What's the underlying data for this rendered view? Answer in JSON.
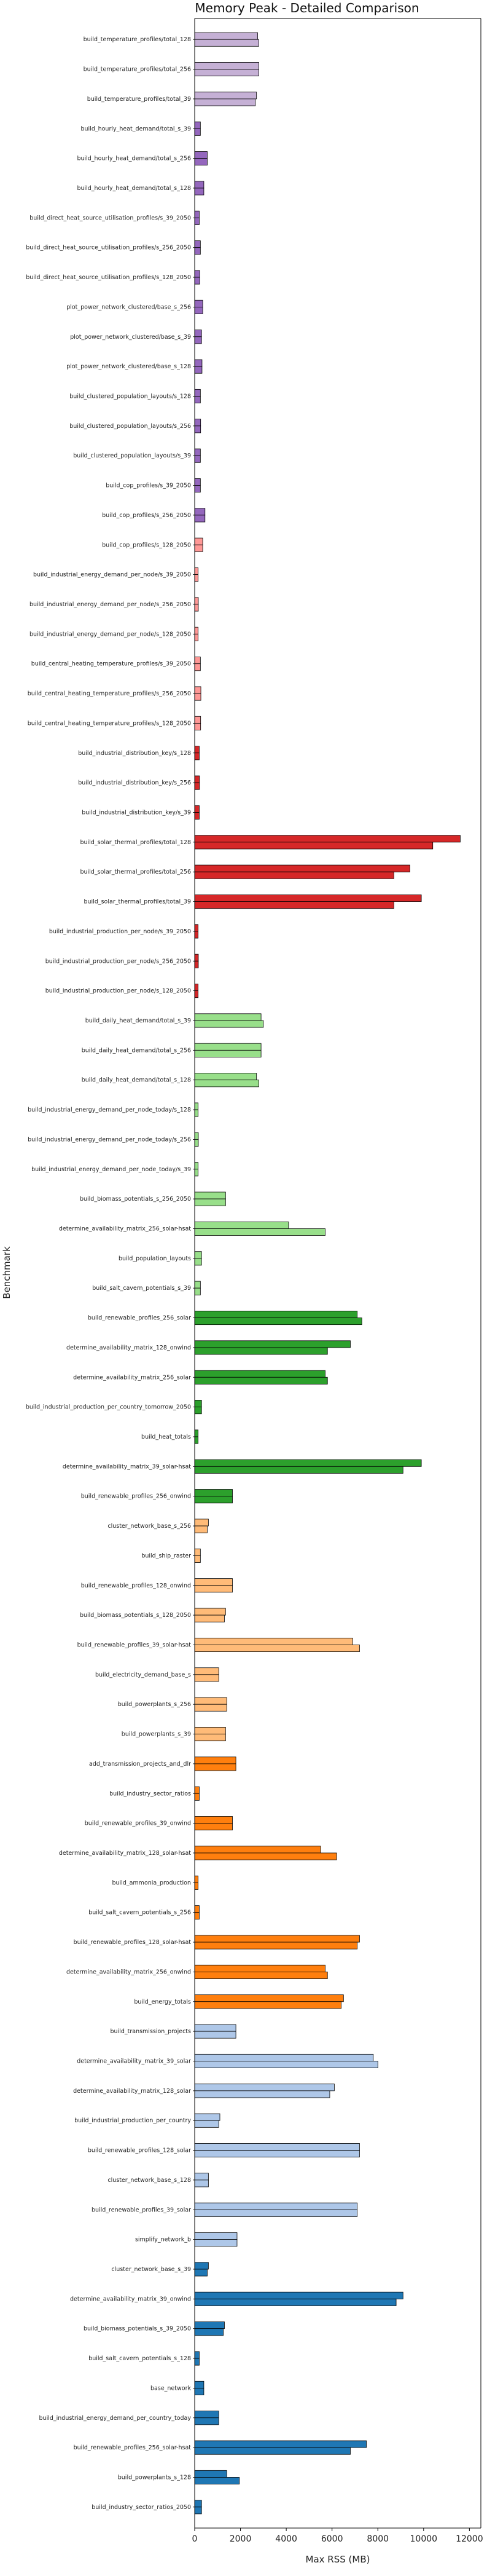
{
  "chart_data": {
    "type": "bar",
    "orientation": "horizontal",
    "title": "Memory Peak - Detailed Comparison",
    "xlabel": "Max RSS (MB)",
    "ylabel": "Benchmark",
    "xlim": [
      0,
      12500
    ],
    "xticks": [
      0,
      2000,
      4000,
      6000,
      8000,
      10000,
      12000
    ],
    "tick_format": "plain",
    "grid": false,
    "colors": {
      "purple_light": "#c5b0d5",
      "purple": "#9467bd",
      "red_light": "#ff9896",
      "red": "#d62728",
      "green_light": "#98df8a",
      "green": "#2ca02c",
      "orange_light": "#ffbb78",
      "orange": "#ff7f0e",
      "blue_light": "#aec7e8",
      "blue": "#1f77b4"
    },
    "benchmarks": [
      {
        "label": "build_temperature_profiles/total_128",
        "color": "purple_light",
        "values": [
          2750,
          2800
        ]
      },
      {
        "label": "build_temperature_profiles/total_256",
        "color": "purple_light",
        "values": [
          2800,
          2800
        ]
      },
      {
        "label": "build_temperature_profiles/total_39",
        "color": "purple_light",
        "values": [
          2700,
          2650
        ]
      },
      {
        "label": "build_hourly_heat_demand/total_s_39",
        "color": "purple",
        "values": [
          250,
          250
        ]
      },
      {
        "label": "build_hourly_heat_demand/total_s_256",
        "color": "purple",
        "values": [
          550,
          550
        ]
      },
      {
        "label": "build_hourly_heat_demand/total_s_128",
        "color": "purple",
        "values": [
          400,
          400
        ]
      },
      {
        "label": "build_direct_heat_source_utilisation_profiles/s_39_2050",
        "color": "purple",
        "values": [
          200,
          200
        ]
      },
      {
        "label": "build_direct_heat_source_utilisation_profiles/s_256_2050",
        "color": "purple",
        "values": [
          250,
          250
        ]
      },
      {
        "label": "build_direct_heat_source_utilisation_profiles/s_128_2050",
        "color": "purple",
        "values": [
          220,
          220
        ]
      },
      {
        "label": "plot_power_network_clustered/base_s_256",
        "color": "purple",
        "values": [
          350,
          350
        ]
      },
      {
        "label": "plot_power_network_clustered/base_s_39",
        "color": "purple",
        "values": [
          300,
          300
        ]
      },
      {
        "label": "plot_power_network_clustered/base_s_128",
        "color": "purple",
        "values": [
          320,
          320
        ]
      },
      {
        "label": "build_clustered_population_layouts/s_128",
        "color": "purple",
        "values": [
          250,
          250
        ]
      },
      {
        "label": "build_clustered_population_layouts/s_256",
        "color": "purple",
        "values": [
          260,
          260
        ]
      },
      {
        "label": "build_clustered_population_layouts/s_39",
        "color": "purple",
        "values": [
          250,
          250
        ]
      },
      {
        "label": "build_cop_profiles/s_39_2050",
        "color": "purple",
        "values": [
          250,
          250
        ]
      },
      {
        "label": "build_cop_profiles/s_256_2050",
        "color": "purple",
        "values": [
          450,
          450
        ]
      },
      {
        "label": "build_cop_profiles/s_128_2050",
        "color": "red_light",
        "values": [
          350,
          350
        ]
      },
      {
        "label": "build_industrial_energy_demand_per_node/s_39_2050",
        "color": "red_light",
        "values": [
          150,
          150
        ]
      },
      {
        "label": "build_industrial_energy_demand_per_node/s_256_2050",
        "color": "red_light",
        "values": [
          160,
          160
        ]
      },
      {
        "label": "build_industrial_energy_demand_per_node/s_128_2050",
        "color": "red_light",
        "values": [
          150,
          150
        ]
      },
      {
        "label": "build_central_heating_temperature_profiles/s_39_2050",
        "color": "red_light",
        "values": [
          250,
          250
        ]
      },
      {
        "label": "build_central_heating_temperature_profiles/s_256_2050",
        "color": "red_light",
        "values": [
          270,
          270
        ]
      },
      {
        "label": "build_central_heating_temperature_profiles/s_128_2050",
        "color": "red_light",
        "values": [
          260,
          260
        ]
      },
      {
        "label": "build_industrial_distribution_key/s_128",
        "color": "red",
        "values": [
          200,
          200
        ]
      },
      {
        "label": "build_industrial_distribution_key/s_256",
        "color": "red",
        "values": [
          210,
          210
        ]
      },
      {
        "label": "build_industrial_distribution_key/s_39",
        "color": "red",
        "values": [
          200,
          200
        ]
      },
      {
        "label": "build_solar_thermal_profiles/total_128",
        "color": "red",
        "values": [
          11600,
          10400
        ]
      },
      {
        "label": "build_solar_thermal_profiles/total_256",
        "color": "red",
        "values": [
          9400,
          8700
        ]
      },
      {
        "label": "build_solar_thermal_profiles/total_39",
        "color": "red",
        "values": [
          9900,
          8700
        ]
      },
      {
        "label": "build_industrial_production_per_node/s_39_2050",
        "color": "red",
        "values": [
          150,
          150
        ]
      },
      {
        "label": "build_industrial_production_per_node/s_256_2050",
        "color": "red",
        "values": [
          160,
          160
        ]
      },
      {
        "label": "build_industrial_production_per_node/s_128_2050",
        "color": "red",
        "values": [
          150,
          150
        ]
      },
      {
        "label": "build_daily_heat_demand/total_s_39",
        "color": "green_light",
        "values": [
          2900,
          3000
        ]
      },
      {
        "label": "build_daily_heat_demand/total_s_256",
        "color": "green_light",
        "values": [
          2900,
          2900
        ]
      },
      {
        "label": "build_daily_heat_demand/total_s_128",
        "color": "green_light",
        "values": [
          2700,
          2800
        ]
      },
      {
        "label": "build_industrial_energy_demand_per_node_today/s_128",
        "color": "green_light",
        "values": [
          150,
          150
        ]
      },
      {
        "label": "build_industrial_energy_demand_per_node_today/s_256",
        "color": "green_light",
        "values": [
          160,
          160
        ]
      },
      {
        "label": "build_industrial_energy_demand_per_node_today/s_39",
        "color": "green_light",
        "values": [
          150,
          150
        ]
      },
      {
        "label": "build_biomass_potentials_s_256_2050",
        "color": "green_light",
        "values": [
          1350,
          1350
        ]
      },
      {
        "label": "determine_availability_matrix_256_solar-hsat",
        "color": "green_light",
        "values": [
          4100,
          5700
        ]
      },
      {
        "label": "build_population_layouts",
        "color": "green_light",
        "values": [
          300,
          300
        ]
      },
      {
        "label": "build_salt_cavern_potentials_s_39",
        "color": "green_light",
        "values": [
          250,
          250
        ]
      },
      {
        "label": "build_renewable_profiles_256_solar",
        "color": "green",
        "values": [
          7100,
          7300
        ]
      },
      {
        "label": "determine_availability_matrix_128_onwind",
        "color": "green",
        "values": [
          6800,
          5800
        ]
      },
      {
        "label": "determine_availability_matrix_256_solar",
        "color": "green",
        "values": [
          5700,
          5800
        ]
      },
      {
        "label": "build_industrial_production_per_country_tomorrow_2050",
        "color": "green",
        "values": [
          300,
          300
        ]
      },
      {
        "label": "build_heat_totals",
        "color": "green",
        "values": [
          150,
          150
        ]
      },
      {
        "label": "determine_availability_matrix_39_solar-hsat",
        "color": "green",
        "values": [
          9900,
          9100
        ]
      },
      {
        "label": "build_renewable_profiles_256_onwind",
        "color": "green",
        "values": [
          1650,
          1650
        ]
      },
      {
        "label": "cluster_network_base_s_256",
        "color": "orange_light",
        "values": [
          600,
          550
        ]
      },
      {
        "label": "build_ship_raster",
        "color": "orange_light",
        "values": [
          250,
          250
        ]
      },
      {
        "label": "build_renewable_profiles_128_onwind",
        "color": "orange_light",
        "values": [
          1650,
          1650
        ]
      },
      {
        "label": "build_biomass_potentials_s_128_2050",
        "color": "orange_light",
        "values": [
          1350,
          1300
        ]
      },
      {
        "label": "build_renewable_profiles_39_solar-hsat",
        "color": "orange_light",
        "values": [
          6900,
          7200
        ]
      },
      {
        "label": "build_electricity_demand_base_s",
        "color": "orange_light",
        "values": [
          1050,
          1050
        ]
      },
      {
        "label": "build_powerplants_s_256",
        "color": "orange_light",
        "values": [
          1400,
          1400
        ]
      },
      {
        "label": "build_powerplants_s_39",
        "color": "orange_light",
        "values": [
          1350,
          1350
        ]
      },
      {
        "label": "add_transmission_projects_and_dlr",
        "color": "orange",
        "values": [
          1800,
          1800
        ]
      },
      {
        "label": "build_industry_sector_ratios",
        "color": "orange",
        "values": [
          200,
          200
        ]
      },
      {
        "label": "build_renewable_profiles_39_onwind",
        "color": "orange",
        "values": [
          1650,
          1650
        ]
      },
      {
        "label": "determine_availability_matrix_128_solar-hsat",
        "color": "orange",
        "values": [
          5500,
          6200
        ]
      },
      {
        "label": "build_ammonia_production",
        "color": "orange",
        "values": [
          150,
          150
        ]
      },
      {
        "label": "build_salt_cavern_potentials_s_256",
        "color": "orange",
        "values": [
          200,
          200
        ]
      },
      {
        "label": "build_renewable_profiles_128_solar-hsat",
        "color": "orange",
        "values": [
          7200,
          7100
        ]
      },
      {
        "label": "determine_availability_matrix_256_onwind",
        "color": "orange",
        "values": [
          5700,
          5800
        ]
      },
      {
        "label": "build_energy_totals",
        "color": "orange",
        "values": [
          6500,
          6400
        ]
      },
      {
        "label": "build_transmission_projects",
        "color": "blue_light",
        "values": [
          1800,
          1800
        ]
      },
      {
        "label": "determine_availability_matrix_39_solar",
        "color": "blue_light",
        "values": [
          7800,
          8000
        ]
      },
      {
        "label": "determine_availability_matrix_128_solar",
        "color": "blue_light",
        "values": [
          6100,
          5900
        ]
      },
      {
        "label": "build_industrial_production_per_country",
        "color": "blue_light",
        "values": [
          1100,
          1050
        ]
      },
      {
        "label": "build_renewable_profiles_128_solar",
        "color": "blue_light",
        "values": [
          7200,
          7200
        ]
      },
      {
        "label": "cluster_network_base_s_128",
        "color": "blue_light",
        "values": [
          600,
          600
        ]
      },
      {
        "label": "build_renewable_profiles_39_solar",
        "color": "blue_light",
        "values": [
          7100,
          7100
        ]
      },
      {
        "label": "simplify_network_b",
        "color": "blue_light",
        "values": [
          1850,
          1850
        ]
      },
      {
        "label": "cluster_network_base_s_39",
        "color": "blue",
        "values": [
          600,
          550
        ]
      },
      {
        "label": "determine_availability_matrix_39_onwind",
        "color": "blue",
        "values": [
          9100,
          8800
        ]
      },
      {
        "label": "build_biomass_potentials_s_39_2050",
        "color": "blue",
        "values": [
          1300,
          1250
        ]
      },
      {
        "label": "build_salt_cavern_potentials_s_128",
        "color": "blue",
        "values": [
          200,
          200
        ]
      },
      {
        "label": "base_network",
        "color": "blue",
        "values": [
          400,
          400
        ]
      },
      {
        "label": "build_industrial_energy_demand_per_country_today",
        "color": "blue",
        "values": [
          1050,
          1050
        ]
      },
      {
        "label": "build_renewable_profiles_256_solar-hsat",
        "color": "blue",
        "values": [
          7500,
          6800
        ]
      },
      {
        "label": "build_powerplants_s_128",
        "color": "blue",
        "values": [
          1400,
          1950
        ]
      },
      {
        "label": "build_industry_sector_ratios_2050",
        "color": "blue",
        "values": [
          300,
          300
        ]
      }
    ]
  }
}
